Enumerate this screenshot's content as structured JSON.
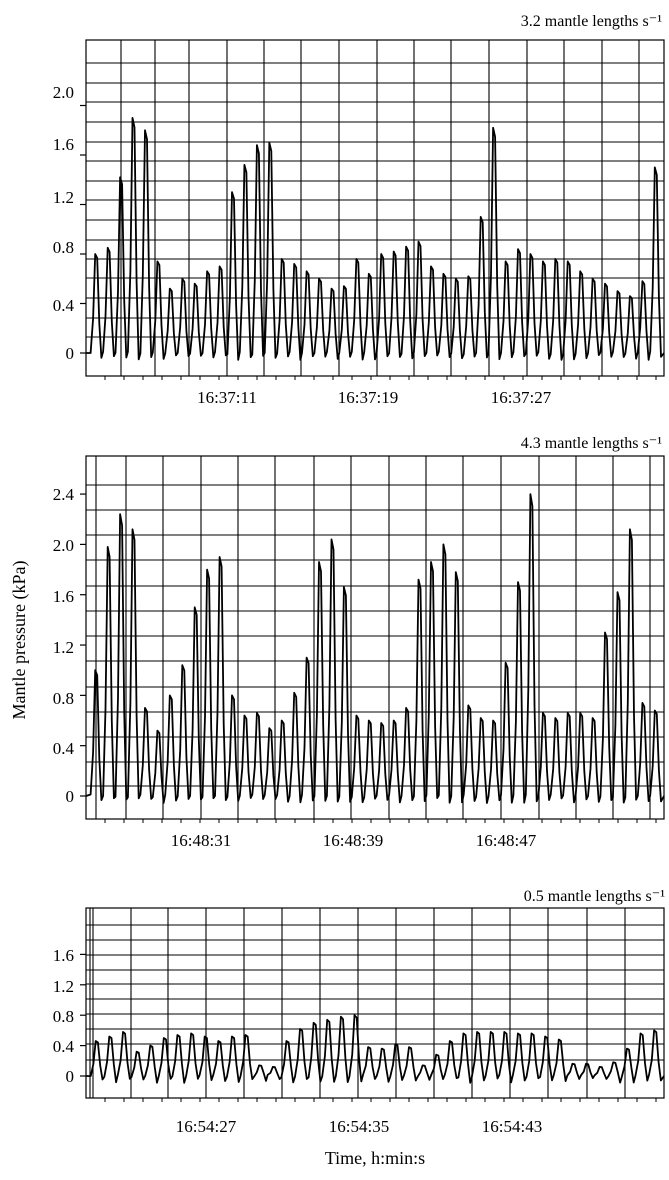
{
  "chart_data": [
    {
      "type": "line",
      "title": "3.2 mantle lengths s⁻¹",
      "xlabel": "",
      "ylabel": "",
      "y_ticks": [
        "0",
        "0.4",
        "0.8",
        "1.2",
        "1.6",
        "2.0"
      ],
      "ylim": [
        -0.15,
        2.45
      ],
      "x_ticks": [
        "16:37:11",
        "16:37:19",
        "16:37:27"
      ],
      "series": [
        {
          "values": [
            0.8,
            0.85,
            1.42,
            1.9,
            1.8,
            0.74,
            0.52,
            0.6,
            0.56,
            0.66,
            0.7,
            1.3,
            1.52,
            1.68,
            1.7,
            0.76,
            0.72,
            0.66,
            0.6,
            0.52,
            0.54,
            0.76,
            0.64,
            0.8,
            0.82,
            0.86,
            0.9,
            0.7,
            0.64,
            0.6,
            0.62,
            1.1,
            1.82,
            0.74,
            0.84,
            0.8,
            0.74,
            0.76,
            0.74,
            0.66,
            0.6,
            0.56,
            0.5,
            0.46,
            0.58,
            1.5
          ]
        }
      ]
    },
    {
      "type": "line",
      "title": "4.3 mantle lengths s⁻¹",
      "xlabel": "",
      "ylabel": "Mantle pressure (kPa)",
      "y_ticks": [
        "0",
        "0.4",
        "0.8",
        "1.2",
        "1.6",
        "2.0",
        "2.4"
      ],
      "ylim": [
        -0.2,
        2.8
      ],
      "x_ticks": [
        "16:48:31",
        "16:48:39",
        "16:48:47"
      ],
      "series": [
        {
          "values": [
            1.0,
            1.98,
            2.24,
            2.12,
            0.7,
            0.52,
            0.8,
            1.04,
            1.5,
            1.8,
            1.9,
            0.8,
            0.64,
            0.66,
            0.54,
            0.6,
            0.82,
            1.1,
            1.86,
            2.04,
            1.66,
            0.64,
            0.6,
            0.58,
            0.6,
            0.7,
            1.72,
            1.86,
            2.0,
            1.78,
            0.72,
            0.62,
            0.6,
            1.06,
            1.7,
            2.4,
            0.66,
            0.62,
            0.66,
            0.66,
            0.62,
            1.3,
            1.62,
            2.12,
            0.74,
            0.68
          ]
        }
      ]
    },
    {
      "type": "line",
      "title": "0.5 mantle lengths s⁻¹",
      "xlabel": "Time, h:min:s",
      "ylabel": "",
      "y_ticks": [
        "0",
        "0.4",
        "0.8",
        "1.2",
        "1.6"
      ],
      "ylim": [
        -0.1,
        1.7
      ],
      "x_ticks": [
        "16:54:27",
        "16:54:35",
        "16:54:43"
      ],
      "series": [
        {
          "values": [
            0.46,
            0.52,
            0.58,
            0.32,
            0.4,
            0.5,
            0.54,
            0.56,
            0.52,
            0.46,
            0.52,
            0.54,
            0.14,
            0.12,
            0.46,
            0.62,
            0.7,
            0.74,
            0.78,
            0.8,
            0.38,
            0.36,
            0.42,
            0.38,
            0.14,
            0.28,
            0.46,
            0.56,
            0.58,
            0.58,
            0.58,
            0.56,
            0.56,
            0.52,
            0.48,
            0.16,
            0.16,
            0.12,
            0.18,
            0.36,
            0.56,
            0.6
          ]
        }
      ]
    }
  ]
}
